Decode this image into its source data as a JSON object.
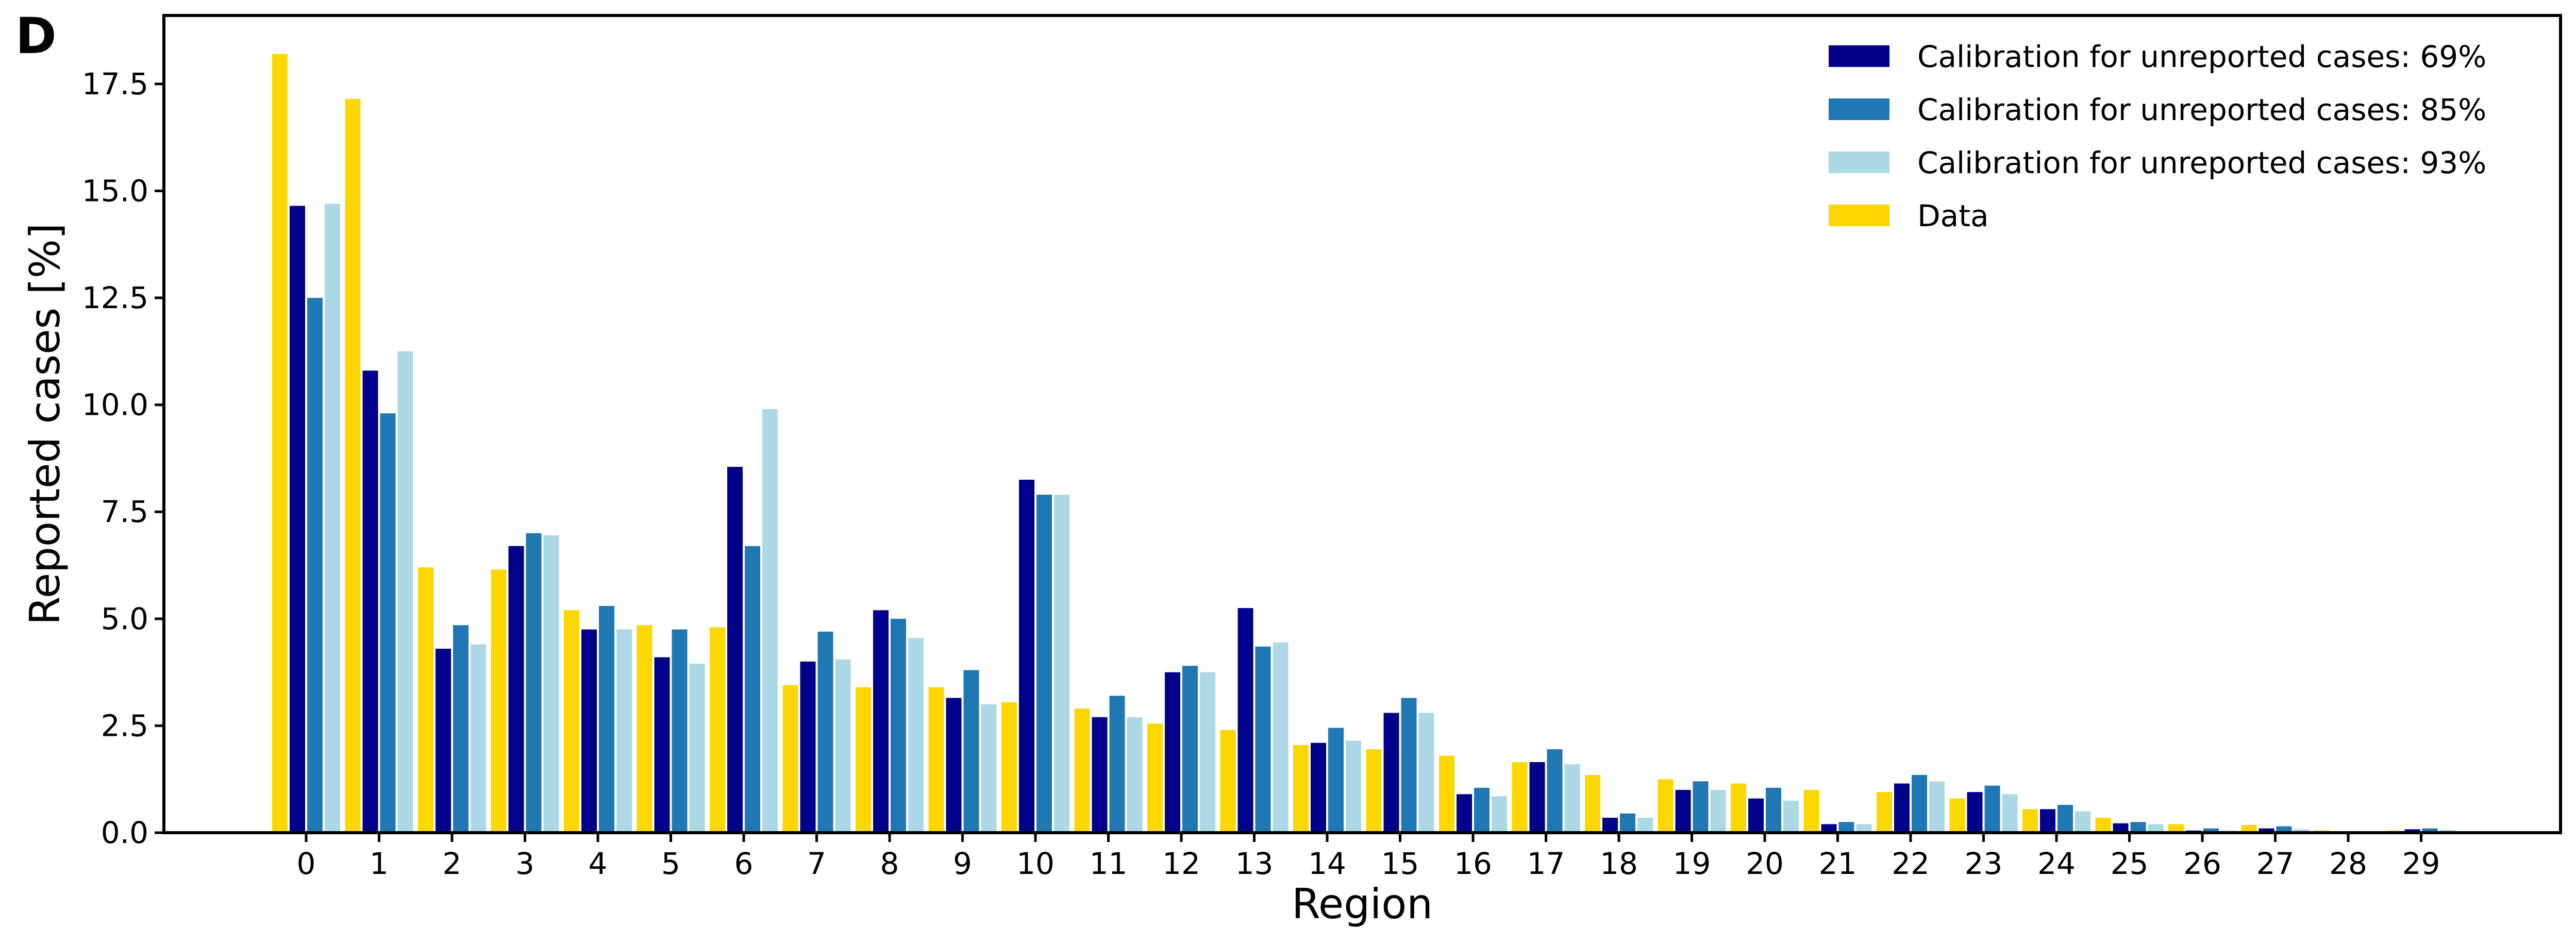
{
  "panel_label": "D",
  "chart_data": {
    "type": "bar",
    "title": "",
    "xlabel": "Region",
    "ylabel": "Reported cases [%]",
    "ylim": [
      0,
      19.1
    ],
    "yticks": [
      "0.0",
      "2.5",
      "5.0",
      "7.5",
      "10.0",
      "12.5",
      "15.0",
      "17.5"
    ],
    "ytick_values": [
      0,
      2.5,
      5,
      7.5,
      10,
      12.5,
      15,
      17.5
    ],
    "categories": [
      "0",
      "1",
      "2",
      "3",
      "4",
      "5",
      "6",
      "7",
      "8",
      "9",
      "10",
      "11",
      "12",
      "13",
      "14",
      "15",
      "16",
      "17",
      "18",
      "19",
      "20",
      "21",
      "22",
      "23",
      "24",
      "25",
      "26",
      "27",
      "28",
      "29"
    ],
    "legend_position": "top-right",
    "grid": false,
    "series": [
      {
        "name": "Data",
        "color": "#FFD700",
        "values": [
          18.2,
          17.15,
          6.2,
          6.15,
          5.2,
          4.85,
          4.8,
          3.45,
          3.4,
          3.4,
          3.05,
          2.9,
          2.55,
          2.4,
          2.05,
          1.95,
          1.8,
          1.65,
          1.35,
          1.25,
          1.15,
          1.0,
          0.95,
          0.8,
          0.55,
          0.35,
          0.2,
          0.18,
          0.05,
          0.05
        ]
      },
      {
        "name": "Calibration for unreported cases: 69%",
        "color": "#00008B",
        "values": [
          14.65,
          10.8,
          4.3,
          6.7,
          4.75,
          4.1,
          8.55,
          4.0,
          5.2,
          3.15,
          8.25,
          2.7,
          3.75,
          5.25,
          2.1,
          2.8,
          0.9,
          1.65,
          0.35,
          1.0,
          0.8,
          0.2,
          1.15,
          0.95,
          0.55,
          0.22,
          0.05,
          0.1,
          0.02,
          0.08
        ]
      },
      {
        "name": "Calibration for unreported cases: 85%",
        "color": "#1F77B4",
        "values": [
          12.5,
          9.8,
          4.85,
          7.0,
          5.3,
          4.75,
          6.7,
          4.7,
          5.0,
          3.8,
          7.9,
          3.2,
          3.9,
          4.35,
          2.45,
          3.15,
          1.05,
          1.95,
          0.45,
          1.2,
          1.05,
          0.25,
          1.35,
          1.1,
          0.65,
          0.25,
          0.1,
          0.15,
          0.03,
          0.1
        ]
      },
      {
        "name": "Calibration for unreported cases: 93%",
        "color": "#ADD8E6",
        "values": [
          14.7,
          11.25,
          4.4,
          6.95,
          4.75,
          3.95,
          9.9,
          4.05,
          4.55,
          3.0,
          7.9,
          2.7,
          3.75,
          4.45,
          2.15,
          2.8,
          0.85,
          1.6,
          0.35,
          1.0,
          0.75,
          0.2,
          1.2,
          0.9,
          0.5,
          0.2,
          0.05,
          0.08,
          0.02,
          0.06
        ]
      }
    ],
    "legend_order": [
      "Calibration for unreported cases: 69%",
      "Calibration for unreported cases: 85%",
      "Calibration for unreported cases: 93%",
      "Data"
    ]
  }
}
